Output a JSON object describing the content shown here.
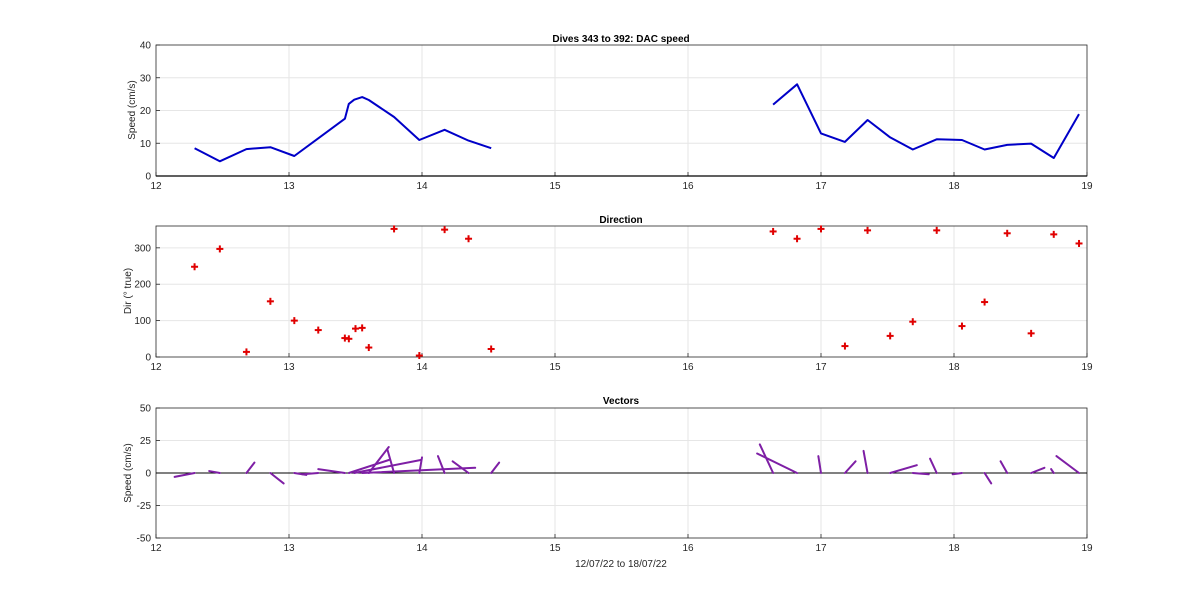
{
  "xlabel": "12/07/22 to 18/07/22",
  "colors": {
    "speed": "#0000c8",
    "direction": "#e00000",
    "vectors": "#7e1fa5",
    "grid": "#e6e6e6",
    "axis": "#262626"
  },
  "chart_data": [
    {
      "type": "line",
      "title": "Dives 343 to 392: DAC speed",
      "ylabel": "Speed (cm/s)",
      "xlim": [
        12,
        19
      ],
      "ylim": [
        0,
        40
      ],
      "xticks": [
        12,
        13,
        14,
        15,
        16,
        17,
        18,
        19
      ],
      "yticks": [
        0,
        10,
        20,
        30,
        40
      ],
      "grid": true,
      "series": [
        {
          "x": [
            12.29,
            12.48,
            12.68,
            12.86,
            13.04,
            13.22,
            13.42,
            13.45,
            13.49,
            13.55,
            13.6,
            13.79,
            13.98,
            14.17,
            14.35,
            14.52
          ],
          "y": [
            8.5,
            4.5,
            8.2,
            8.8,
            6.1,
            11.5,
            17.5,
            22.0,
            23.3,
            24.1,
            23.2,
            18.0,
            11.0,
            14.1,
            10.8,
            8.5
          ]
        },
        {
          "x": [
            16.64,
            16.82,
            17.0,
            17.18,
            17.35,
            17.52,
            17.69,
            17.87,
            17.97,
            18.06,
            18.23,
            18.4,
            18.58,
            18.75,
            18.94
          ],
          "y": [
            21.8,
            28.0,
            13.0,
            10.4,
            17.1,
            11.8,
            8.1,
            11.2,
            11.1,
            11.0,
            8.1,
            9.5,
            9.9,
            5.5,
            18.9
          ]
        }
      ]
    },
    {
      "type": "scatter",
      "title": "Direction",
      "ylabel": "Dir (° true)",
      "xlim": [
        12,
        19
      ],
      "ylim": [
        0,
        360
      ],
      "xticks": [
        12,
        13,
        14,
        15,
        16,
        17,
        18,
        19
      ],
      "yticks": [
        0,
        100,
        200,
        300
      ],
      "grid": true,
      "marker": "+",
      "x": [
        12.29,
        12.48,
        12.68,
        12.86,
        13.04,
        13.22,
        13.42,
        13.45,
        13.5,
        13.55,
        13.6,
        13.79,
        13.98,
        14.17,
        14.35,
        14.52,
        16.64,
        16.82,
        17.0,
        17.18,
        17.35,
        17.52,
        17.69,
        17.87,
        18.06,
        18.23,
        18.4,
        18.58,
        18.75,
        18.94
      ],
      "y": [
        248,
        297,
        14,
        153,
        100,
        74,
        52,
        50,
        78,
        80,
        26,
        352,
        4,
        350,
        325,
        22,
        345,
        325,
        352,
        30,
        348,
        58,
        97,
        348,
        85,
        151,
        340,
        65,
        337,
        312
      ]
    },
    {
      "type": "line",
      "title": "Vectors",
      "ylabel": "Speed (cm/s)",
      "xlim": [
        12,
        19
      ],
      "ylim": [
        -50,
        50
      ],
      "xticks": [
        12,
        13,
        14,
        15,
        16,
        17,
        18,
        19
      ],
      "yticks": [
        -50,
        -25,
        0,
        25,
        50
      ],
      "grid": true,
      "vectors": [
        {
          "x": 12.29,
          "dx": -0.15,
          "dy": -3.0
        },
        {
          "x": 12.48,
          "dx": -0.08,
          "dy": 1.5
        },
        {
          "x": 12.68,
          "dx": 0.06,
          "dy": 8.0
        },
        {
          "x": 12.86,
          "dx": 0.1,
          "dy": -8.0
        },
        {
          "x": 13.04,
          "dx": 0.09,
          "dy": -1.5
        },
        {
          "x": 13.22,
          "dx": -0.12,
          "dy": -1.0
        },
        {
          "x": 13.42,
          "dx": -0.2,
          "dy": 3.0
        },
        {
          "x": 13.45,
          "dx": 0.3,
          "dy": 10.0
        },
        {
          "x": 13.49,
          "dx": 0.5,
          "dy": 10.0
        },
        {
          "x": 13.55,
          "dx": 0.85,
          "dy": 4.0
        },
        {
          "x": 13.6,
          "dx": 0.15,
          "dy": 20.0
        },
        {
          "x": 13.79,
          "dx": -0.05,
          "dy": 18.0
        },
        {
          "x": 13.98,
          "dx": 0.02,
          "dy": 12.0
        },
        {
          "x": 14.17,
          "dx": -0.05,
          "dy": 13.0
        },
        {
          "x": 14.35,
          "dx": -0.12,
          "dy": 9.0
        },
        {
          "x": 14.52,
          "dx": 0.06,
          "dy": 8.0
        },
        {
          "x": 16.64,
          "dx": -0.1,
          "dy": 22.0
        },
        {
          "x": 16.82,
          "dx": -0.3,
          "dy": 15.0
        },
        {
          "x": 17.0,
          "dx": -0.02,
          "dy": 13.0
        },
        {
          "x": 17.18,
          "dx": 0.08,
          "dy": 9.0
        },
        {
          "x": 17.35,
          "dx": -0.03,
          "dy": 17.0
        },
        {
          "x": 17.52,
          "dx": 0.2,
          "dy": 6.0
        },
        {
          "x": 17.69,
          "dx": 0.12,
          "dy": -1.0
        },
        {
          "x": 17.87,
          "dx": -0.05,
          "dy": 11.0
        },
        {
          "x": 18.06,
          "dx": -0.07,
          "dy": -1.0
        },
        {
          "x": 18.23,
          "dx": 0.05,
          "dy": -8.0
        },
        {
          "x": 18.4,
          "dx": -0.05,
          "dy": 9.0
        },
        {
          "x": 18.58,
          "dx": 0.1,
          "dy": 4.0
        },
        {
          "x": 18.75,
          "dx": -0.02,
          "dy": 3.0
        },
        {
          "x": 18.94,
          "dx": -0.17,
          "dy": 13.0
        }
      ]
    }
  ]
}
